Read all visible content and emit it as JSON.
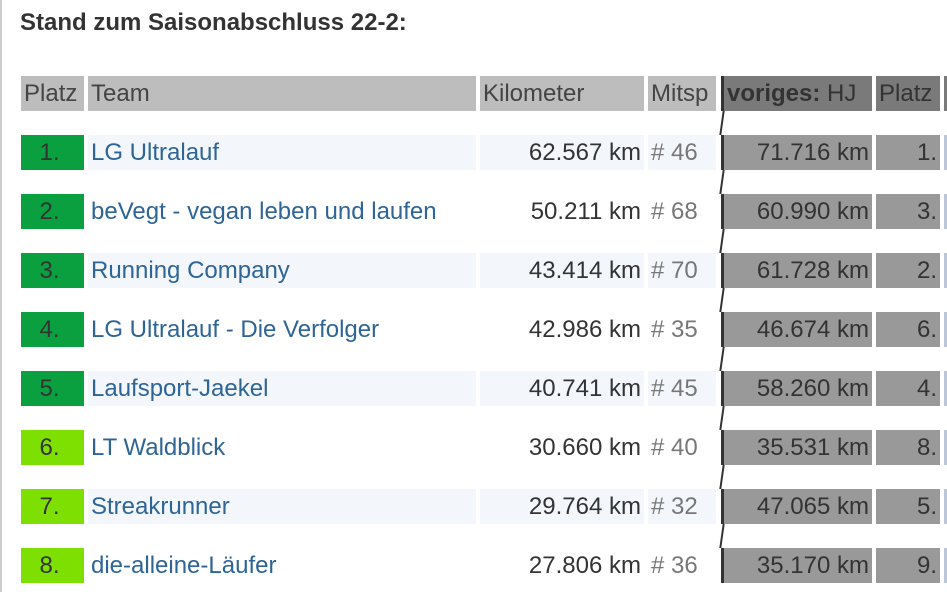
{
  "title": "Stand zum Saisonabschluss 22-2:",
  "headers": {
    "rank": "Platz",
    "team": "Team",
    "km": "Kilometer",
    "members": "Mitsp",
    "prev_bold": "voriges:",
    "prev_rest": " HJ",
    "prev_rank": "Platz"
  },
  "colors": {
    "top5": "#0aa040",
    "rest": "#7ee000",
    "link": "#2e6496"
  },
  "rows": [
    {
      "rank": "1.",
      "team": "LG Ultralauf",
      "km": "62.567 km",
      "members": "# 46",
      "prev_km": "71.716 km",
      "prev_rank": "1."
    },
    {
      "rank": "2.",
      "team": "beVegt - vegan leben und laufen",
      "km": "50.211 km",
      "members": "# 68",
      "prev_km": "60.990 km",
      "prev_rank": "3."
    },
    {
      "rank": "3.",
      "team": "Running Company",
      "km": "43.414 km",
      "members": "# 70",
      "prev_km": "61.728 km",
      "prev_rank": "2."
    },
    {
      "rank": "4.",
      "team": "LG Ultralauf - Die Verfolger",
      "km": "42.986 km",
      "members": "# 35",
      "prev_km": "46.674 km",
      "prev_rank": "6."
    },
    {
      "rank": "5.",
      "team": "Laufsport-Jaekel",
      "km": "40.741 km",
      "members": "# 45",
      "prev_km": "58.260 km",
      "prev_rank": "4."
    },
    {
      "rank": "6.",
      "team": "LT Waldblick",
      "km": "30.660 km",
      "members": "# 40",
      "prev_km": "35.531 km",
      "prev_rank": "8."
    },
    {
      "rank": "7.",
      "team": "Streakrunner",
      "km": "29.764 km",
      "members": "# 32",
      "prev_km": "47.065 km",
      "prev_rank": "5."
    },
    {
      "rank": "8.",
      "team": "die-alleine-Läufer",
      "km": "27.806 km",
      "members": "# 36",
      "prev_km": "35.170 km",
      "prev_rank": "9."
    }
  ]
}
